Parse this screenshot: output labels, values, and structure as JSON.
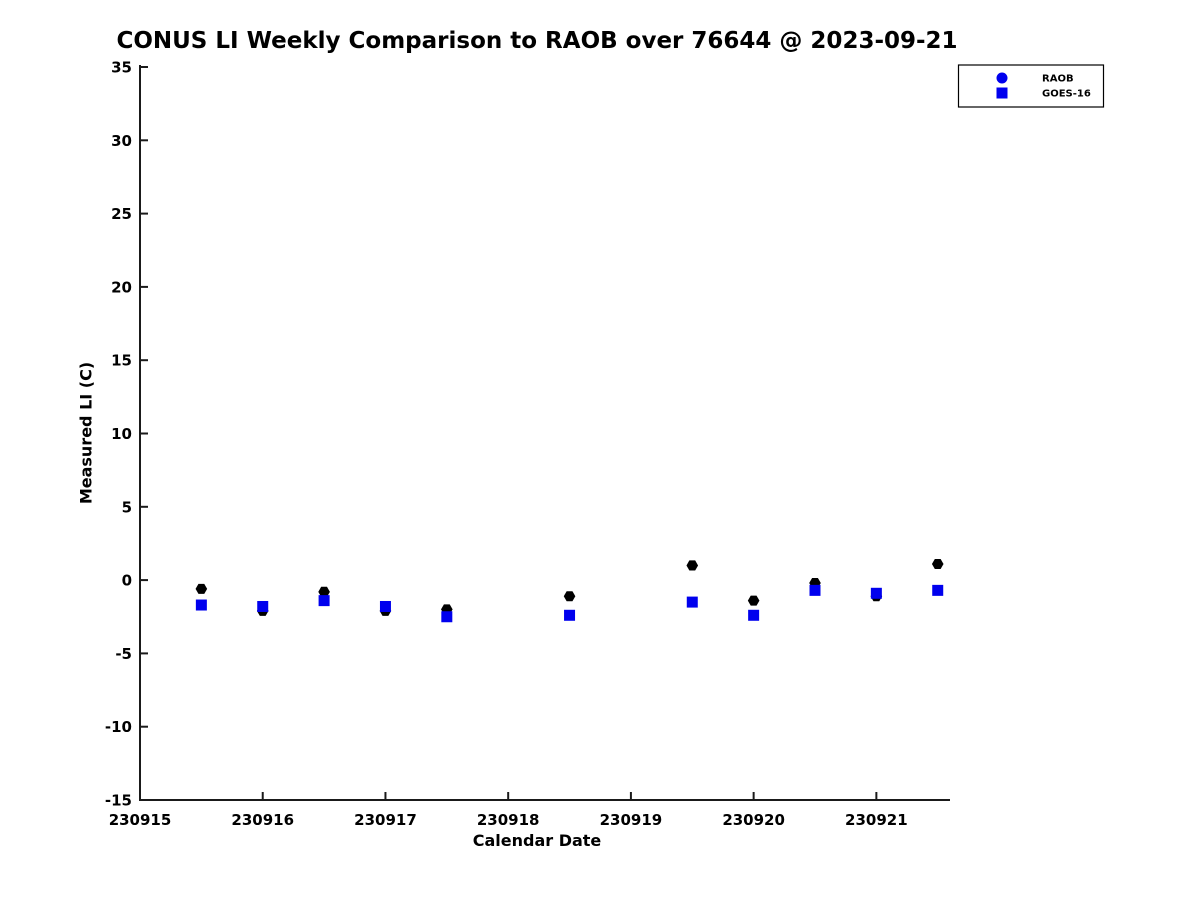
{
  "page_background": "#ffffff",
  "chart_data": {
    "type": "scatter",
    "title": "CONUS LI Weekly Comparison to RAOB over 76644 @ 2023-09-21",
    "xlabel": "Calendar Date",
    "ylabel": "Measured LI (C)",
    "xlim": [
      230915,
      230921.6
    ],
    "ylim": [
      -15,
      35
    ],
    "xticks": [
      230915,
      230916,
      230917,
      230918,
      230919,
      230920,
      230921
    ],
    "yticks": [
      -15,
      -10,
      -5,
      0,
      5,
      10,
      15,
      20,
      25,
      30,
      35
    ],
    "grid": false,
    "axis_color": "#1a1a1a",
    "legend": {
      "position": "top-right",
      "entries": [
        {
          "label": "RAOB",
          "marker": "circle",
          "color": "#0000ee"
        },
        {
          "label": "GOES-16",
          "marker": "square",
          "color": "#0000ee"
        }
      ]
    },
    "series": [
      {
        "name": "RAOB",
        "marker": "hexagon",
        "color": "#000000",
        "x": [
          230915.5,
          230916.0,
          230916.5,
          230917.0,
          230917.5,
          230918.5,
          230919.5,
          230920.0,
          230920.5,
          230921.0,
          230921.5
        ],
        "y": [
          -0.6,
          -2.1,
          -0.8,
          -2.1,
          -2.0,
          -1.1,
          1.0,
          -1.4,
          -0.2,
          -1.1,
          1.1
        ]
      },
      {
        "name": "GOES-16",
        "marker": "square",
        "color": "#0000ee",
        "x": [
          230915.5,
          230916.0,
          230916.5,
          230917.0,
          230917.5,
          230918.5,
          230919.5,
          230920.0,
          230920.5,
          230921.0,
          230921.5
        ],
        "y": [
          -1.7,
          -1.8,
          -1.4,
          -1.8,
          -2.5,
          -2.4,
          -1.5,
          -2.4,
          -0.7,
          -0.9,
          -0.7
        ]
      }
    ]
  }
}
